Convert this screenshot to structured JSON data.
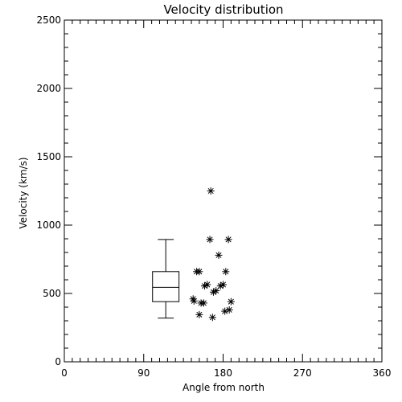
{
  "chart_data": {
    "type": "scatter",
    "title": "Velocity distribution",
    "xlabel": "Angle from north",
    "ylabel": "Velocity (km/s)",
    "xlim": [
      0,
      360
    ],
    "ylim": [
      0,
      2500
    ],
    "xticks": [
      0,
      90,
      180,
      270,
      360
    ],
    "yticks": [
      0,
      500,
      1000,
      1500,
      2000,
      2500
    ],
    "grid": false,
    "marker": "asterisk",
    "points": [
      {
        "x": 166,
        "y": 1250
      },
      {
        "x": 165,
        "y": 895
      },
      {
        "x": 186,
        "y": 895
      },
      {
        "x": 175,
        "y": 780
      },
      {
        "x": 150,
        "y": 660
      },
      {
        "x": 153,
        "y": 660
      },
      {
        "x": 183,
        "y": 660
      },
      {
        "x": 162,
        "y": 565
      },
      {
        "x": 159,
        "y": 555
      },
      {
        "x": 180,
        "y": 565
      },
      {
        "x": 177,
        "y": 555
      },
      {
        "x": 172,
        "y": 520
      },
      {
        "x": 169,
        "y": 510
      },
      {
        "x": 146,
        "y": 460
      },
      {
        "x": 147,
        "y": 445
      },
      {
        "x": 155,
        "y": 430
      },
      {
        "x": 158,
        "y": 430
      },
      {
        "x": 189,
        "y": 440
      },
      {
        "x": 187,
        "y": 380
      },
      {
        "x": 182,
        "y": 370
      },
      {
        "x": 153,
        "y": 345
      },
      {
        "x": 168,
        "y": 325
      }
    ],
    "boxplot": {
      "position": 115,
      "width": 30,
      "whisker_low": 320,
      "q1": 440,
      "median": 545,
      "q3": 660,
      "whisker_high": 895
    }
  }
}
